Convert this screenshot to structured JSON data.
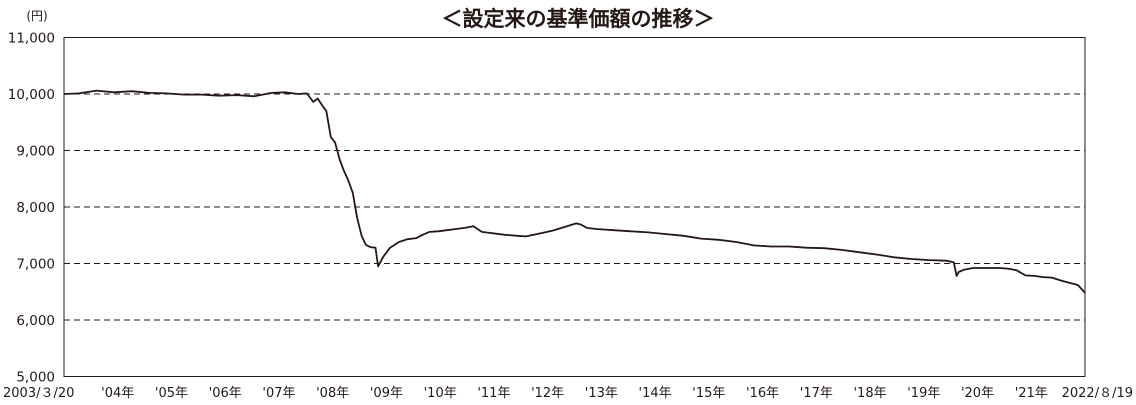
{
  "chart_data": {
    "type": "line",
    "title": "＜設定来の基準価額の推移＞",
    "unit_label": "(円)",
    "xlabel": "",
    "ylabel": "",
    "ylim": [
      5000,
      11000
    ],
    "y_ticks": [
      "5,000",
      "6,000",
      "7,000",
      "8,000",
      "9,000",
      "10,000",
      "11,000"
    ],
    "x_tick_labels": [
      "2003/３/20",
      "'04年",
      "'05年",
      "'06年",
      "'07年",
      "'08年",
      "'09年",
      "'10年",
      "'11年",
      "'12年",
      "'13年",
      "'14年",
      "'15年",
      "'16年",
      "'17年",
      "'18年",
      "'19年",
      "'20年",
      "'21年",
      "2022/８/19"
    ],
    "grid": "horizontal dashed",
    "legend": "none",
    "colors": {
      "line": "#231815",
      "grid": "#231815",
      "frame": "#231815"
    },
    "series": [
      {
        "x": [
          "2003-03-20",
          "2003-07-01",
          "2003-11-01",
          "2004-03-01",
          "2004-07-01",
          "2004-11-01",
          "2005-03-01",
          "2005-07-01",
          "2005-11-01",
          "2006-03-01",
          "2006-07-01",
          "2006-11-01",
          "2007-03-01",
          "2007-06-01",
          "2007-09-01",
          "2007-11-01",
          "2007-12-15",
          "2008-01-15",
          "2008-02-15",
          "2008-03-15",
          "2008-04-15",
          "2008-05-15",
          "2008-06-15",
          "2008-07-15",
          "2008-08-15",
          "2008-09-15",
          "2008-10-15",
          "2008-11-15",
          "2008-12-15",
          "2009-01-15",
          "2009-02-20",
          "2009-03-10",
          "2009-04-15",
          "2009-06-01",
          "2009-08-01",
          "2009-10-01",
          "2009-12-01",
          "2010-01-15",
          "2010-03-01",
          "2010-05-01",
          "2010-07-01",
          "2010-09-01",
          "2010-11-01",
          "2011-01-01",
          "2011-03-01",
          "2011-05-01",
          "2011-08-01",
          "2011-11-01",
          "2012-01-01",
          "2012-04-01",
          "2012-07-01",
          "2012-10-01",
          "2012-12-15",
          "2013-01-15",
          "2013-03-01",
          "2013-05-01",
          "2013-09-01",
          "2014-01-01",
          "2014-05-01",
          "2014-09-01",
          "2015-01-01",
          "2015-05-01",
          "2015-09-01",
          "2016-01-01",
          "2016-05-01",
          "2016-09-01",
          "2017-01-01",
          "2017-05-01",
          "2017-09-01",
          "2018-01-01",
          "2018-05-01",
          "2018-09-01",
          "2019-01-01",
          "2019-05-01",
          "2019-09-01",
          "2020-01-01",
          "2020-02-20",
          "2020-03-10",
          "2020-03-25",
          "2020-05-01",
          "2020-07-01",
          "2020-10-01",
          "2021-01-01",
          "2021-03-01",
          "2021-05-01",
          "2021-07-01",
          "2021-09-01",
          "2021-11-01",
          "2022-01-01",
          "2022-03-01",
          "2022-05-01",
          "2022-07-01",
          "2022-08-19"
        ],
        "values": [
          10000,
          10010,
          10060,
          10030,
          10050,
          10020,
          10010,
          9990,
          9990,
          9970,
          9980,
          9960,
          10020,
          10030,
          10000,
          10010,
          9860,
          9920,
          9800,
          9700,
          9240,
          9140,
          8850,
          8640,
          8470,
          8250,
          7810,
          7490,
          7330,
          7290,
          7280,
          6950,
          7120,
          7280,
          7380,
          7430,
          7450,
          7510,
          7560,
          7570,
          7590,
          7610,
          7630,
          7660,
          7560,
          7540,
          7510,
          7490,
          7480,
          7530,
          7580,
          7650,
          7710,
          7690,
          7630,
          7610,
          7590,
          7570,
          7550,
          7520,
          7490,
          7440,
          7420,
          7380,
          7320,
          7300,
          7300,
          7280,
          7270,
          7240,
          7200,
          7160,
          7110,
          7080,
          7060,
          7050,
          7020,
          6780,
          6850,
          6890,
          6920,
          6920,
          6920,
          6910,
          6880,
          6790,
          6780,
          6760,
          6750,
          6700,
          6660,
          6620,
          6480
        ]
      }
    ]
  }
}
